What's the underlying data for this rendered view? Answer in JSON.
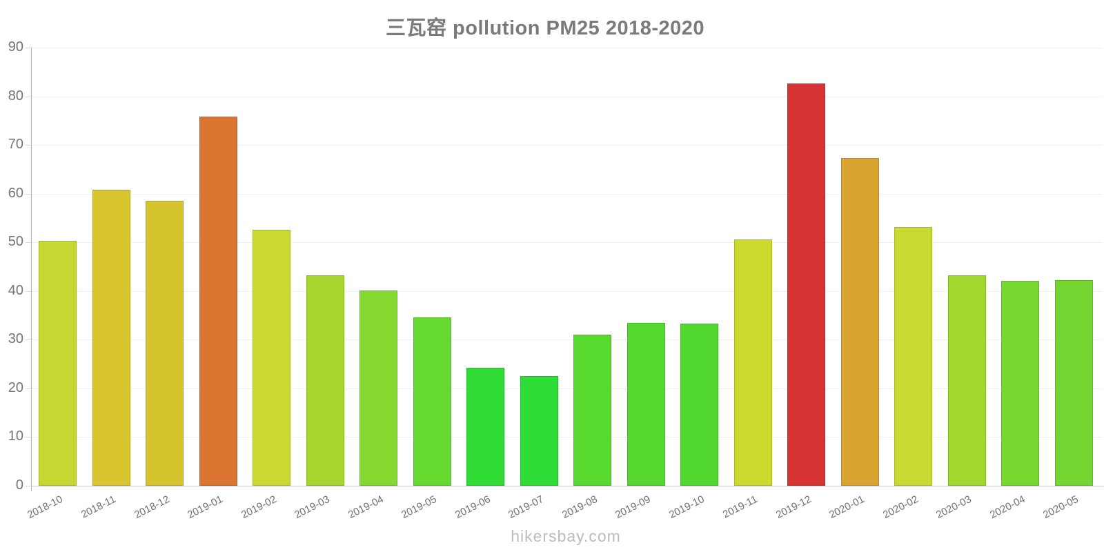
{
  "title": "三瓦窑 pollution PM25 2018-2020",
  "footer": "hikersbay.com",
  "colors": {
    "title": "#7a7a7a",
    "axis_line": "#b3b3b3",
    "baseline": "#cccccc",
    "gridline": "#f0f0f0",
    "y_tick": "#d9d9d9",
    "y_label": "#757575",
    "x_label": "#6f6f6f",
    "footer": "#bcbcbc"
  },
  "chart_data": {
    "type": "bar",
    "title": "三瓦窑 pollution PM25 2018-2020",
    "xlabel": "",
    "ylabel": "",
    "ylim": [
      0,
      90
    ],
    "yticks": [
      0,
      10,
      20,
      30,
      40,
      50,
      60,
      70,
      80,
      90
    ],
    "grid": "horizontal gridlines on, no vertical gridlines",
    "legend": "none",
    "x_label_rotation_deg": -27,
    "categories": [
      "2018-10",
      "2018-11",
      "2018-12",
      "2019-01",
      "2019-02",
      "2019-03",
      "2019-04",
      "2019-05",
      "2019-06",
      "2019-07",
      "2019-08",
      "2019-09",
      "2019-10",
      "2019-11",
      "2019-12",
      "2020-01",
      "2020-02",
      "2020-03",
      "2020-04",
      "2020-05"
    ],
    "values": [
      50.3,
      60.8,
      58.5,
      75.8,
      52.6,
      43.2,
      40.1,
      34.6,
      24.2,
      22.6,
      31.0,
      33.5,
      33.3,
      50.6,
      82.7,
      67.3,
      53.1,
      43.2,
      42.1,
      42.3
    ],
    "bar_colors": [
      "#c6d733",
      "#d8c52f",
      "#d6c42e",
      "#da7430",
      "#cad833",
      "#a8d62f",
      "#85d830",
      "#67da31",
      "#31dc37",
      "#2edd38",
      "#57d930",
      "#55d730",
      "#52d731",
      "#ccd92f",
      "#d63434",
      "#d9a42f",
      "#c8d933",
      "#a2d92f",
      "#79d830",
      "#76d631"
    ]
  }
}
